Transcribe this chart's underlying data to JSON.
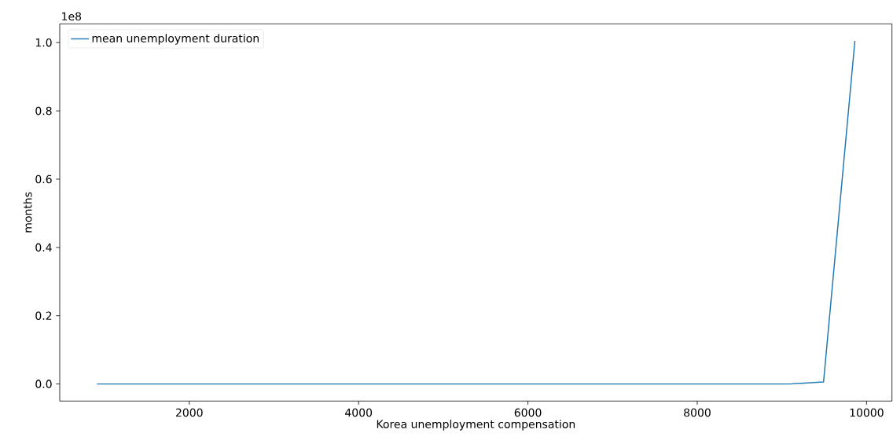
{
  "chart_data": {
    "type": "line",
    "xlabel": "Korea unemployment compensation",
    "ylabel": "months",
    "annotations": [
      "1e8"
    ],
    "x": [
      910,
      9100,
      9492,
      9862
    ],
    "series": [
      {
        "name": "mean unemployment duration",
        "color": "#1f77b4",
        "values": [
          0,
          0,
          0.006,
          1.005
        ]
      }
    ],
    "xlim": [
      470,
      10300
    ],
    "ylim": [
      -0.05,
      1.055
    ],
    "xticks": [
      2000,
      4000,
      6000,
      8000,
      10000
    ],
    "yticks": [
      {
        "value": 0,
        "label": "0.0"
      },
      0.2,
      0.4,
      0.6,
      0.8,
      {
        "value": 1,
        "label": "1.0"
      }
    ],
    "legend": "top left",
    "line_style": "solid"
  }
}
